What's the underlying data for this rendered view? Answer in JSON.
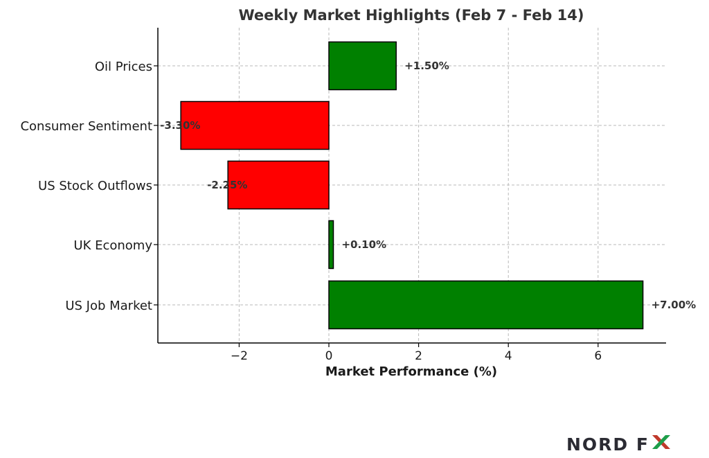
{
  "chart_data": {
    "type": "bar",
    "orientation": "horizontal",
    "title": "Weekly Market Highlights (Feb 7 - Feb 14)",
    "xlabel": "Market Performance (%)",
    "ylabel": "",
    "categories": [
      "Oil Prices",
      "Consumer Sentiment",
      "US Stock Outflows",
      "UK Economy",
      "US Job Market"
    ],
    "values": [
      1.5,
      -3.3,
      -2.25,
      0.1,
      7.0
    ],
    "data_labels": [
      "+1.50%",
      "-3.30%",
      "-2.25%",
      "+0.10%",
      "+7.00%"
    ],
    "colors": [
      "#008000",
      "#ff0000",
      "#ff0000",
      "#008000",
      "#008000"
    ],
    "xlim": [
      -3.8,
      7.5
    ],
    "xticks": [
      -2,
      0,
      2,
      4,
      6
    ],
    "xtick_labels": [
      "−2",
      "0",
      "2",
      "4",
      "6"
    ],
    "grid": true
  },
  "logo": {
    "text": "NORD FX",
    "main": "NORD F",
    "x_letter": "X",
    "colors": {
      "text": "#2b2b33",
      "x_left": "#c0392b",
      "x_right": "#1e9e4a"
    }
  }
}
